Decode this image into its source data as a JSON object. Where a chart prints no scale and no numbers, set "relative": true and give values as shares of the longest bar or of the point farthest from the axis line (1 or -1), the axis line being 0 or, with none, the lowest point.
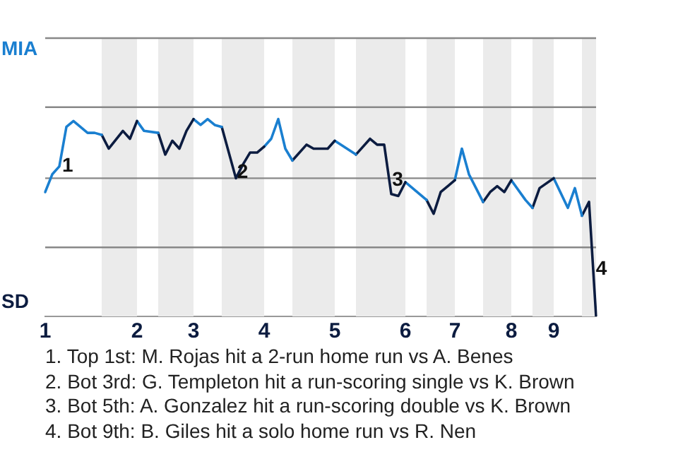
{
  "chart_data": {
    "type": "line",
    "marker": "none",
    "line_style": "solid",
    "relative": true,
    "ref_lines": [
      {
        "axis": "y",
        "value": 0.35,
        "color": "#888888"
      },
      {
        "axis": "y",
        "value": 0.7,
        "color": "#888888"
      },
      {
        "axis": "y",
        "value": 1.06,
        "color": "#888888"
      },
      {
        "axis": "y",
        "value": 1.41,
        "color": "#888888"
      }
    ],
    "categories": [
      "1",
      null,
      null,
      null,
      null,
      null,
      null,
      null,
      null,
      null,
      null,
      null,
      null,
      "2",
      null,
      null,
      null,
      null,
      null,
      null,
      null,
      "3",
      null,
      null,
      null,
      null,
      null,
      null,
      null,
      null,
      null,
      "4",
      null,
      null,
      null,
      null,
      null,
      null,
      null,
      null,
      null,
      "5",
      null,
      null,
      null,
      null,
      null,
      null,
      null,
      null,
      null,
      "6",
      null,
      null,
      null,
      null,
      null,
      null,
      "7",
      null,
      null,
      null,
      null,
      null,
      null,
      null,
      "8",
      null,
      null,
      null,
      null,
      null,
      "9",
      null,
      null,
      null,
      null,
      null,
      null
    ],
    "series": [
      {
        "color": "#1a7fd0",
        "values": [
          0.63,
          0.72,
          0.76,
          0.96,
          0.99,
          null,
          0.93,
          0.93,
          0.92,
          null,
          null,
          null,
          null,
          null,
          null,
          null,
          null,
          null,
          null,
          null,
          null,
          null,
          null,
          null,
          null,
          null,
          null,
          null,
          null,
          null,
          null,
          null,
          null,
          null,
          null,
          null,
          null,
          null,
          null,
          null,
          null,
          null,
          null,
          null,
          null,
          null,
          null,
          null,
          null,
          null,
          null,
          null,
          null,
          null,
          null,
          null,
          null,
          null,
          null,
          null,
          null,
          null,
          null,
          null,
          null,
          null,
          null,
          null,
          null,
          null,
          null,
          null,
          null,
          null,
          null,
          null,
          null,
          null,
          null
        ]
      },
      {
        "color": "#0c1c40",
        "values": [
          null,
          null,
          null,
          null,
          null,
          null,
          null,
          null,
          0.92,
          0.85,
          null,
          0.94,
          0.9,
          0.99,
          null,
          null,
          null,
          null,
          null,
          null,
          null,
          null,
          null,
          null,
          null,
          null,
          null,
          null,
          null,
          null,
          null,
          null,
          null,
          null,
          null,
          null,
          null,
          null,
          null,
          null,
          null,
          null,
          null,
          null,
          null,
          null,
          null,
          null,
          null,
          null,
          null,
          null,
          null,
          null,
          null,
          null,
          null,
          null,
          null,
          null,
          null,
          null,
          null,
          null,
          null,
          null,
          null,
          null,
          null,
          null,
          null,
          null,
          null,
          null,
          null,
          null,
          null,
          null,
          null
        ]
      },
      {
        "color": "#1a7fd0",
        "values": [
          null,
          null,
          null,
          null,
          null,
          null,
          null,
          null,
          null,
          null,
          null,
          null,
          null,
          0.99,
          0.94,
          null,
          0.93,
          null,
          null,
          null,
          null,
          null,
          null,
          null,
          null,
          null,
          null,
          null,
          null,
          null,
          null,
          null,
          null,
          null,
          null,
          null,
          null,
          null,
          null,
          null,
          null,
          null,
          null,
          null,
          null,
          null,
          null,
          null,
          null,
          null,
          null,
          null,
          null,
          null,
          null,
          null,
          null,
          null,
          null,
          null,
          null,
          null,
          null,
          null,
          null,
          null,
          null,
          null,
          null,
          null,
          null,
          null,
          null,
          null,
          null,
          null,
          null,
          null,
          null
        ]
      },
      {
        "color": "#0c1c40",
        "values": [
          null,
          null,
          null,
          null,
          null,
          null,
          null,
          null,
          null,
          null,
          null,
          null,
          null,
          null,
          null,
          null,
          0.93,
          0.82,
          0.89,
          0.85,
          0.94,
          1,
          null,
          null,
          null,
          null,
          null,
          null,
          null,
          null,
          null,
          null,
          null,
          null,
          null,
          null,
          null,
          null,
          null,
          null,
          null,
          null,
          null,
          null,
          null,
          null,
          null,
          null,
          null,
          null,
          null,
          null,
          null,
          null,
          null,
          null,
          null,
          null,
          null,
          null,
          null,
          null,
          null,
          null,
          null,
          null,
          null,
          null,
          null,
          null,
          null,
          null,
          null,
          null,
          null,
          null,
          null,
          null,
          null
        ]
      },
      {
        "color": "#1a7fd0",
        "values": [
          null,
          null,
          null,
          null,
          null,
          null,
          null,
          null,
          null,
          null,
          null,
          null,
          null,
          null,
          null,
          null,
          null,
          null,
          null,
          null,
          null,
          1,
          0.97,
          1,
          0.97,
          0.96,
          null,
          null,
          null,
          null,
          null,
          null,
          null,
          null,
          null,
          null,
          null,
          null,
          null,
          null,
          null,
          null,
          null,
          null,
          null,
          null,
          null,
          null,
          null,
          null,
          null,
          null,
          null,
          null,
          null,
          null,
          null,
          null,
          null,
          null,
          null,
          null,
          null,
          null,
          null,
          null,
          null,
          null,
          null,
          null,
          null,
          null,
          null,
          null,
          null,
          null,
          null,
          null,
          null
        ]
      },
      {
        "color": "#0c1c40",
        "values": [
          null,
          null,
          null,
          null,
          null,
          null,
          null,
          null,
          null,
          null,
          null,
          null,
          null,
          null,
          null,
          null,
          null,
          null,
          null,
          null,
          null,
          null,
          null,
          null,
          null,
          0.96,
          null,
          0.7,
          0.77,
          0.83,
          0.83,
          0.86,
          null,
          null,
          null,
          null,
          null,
          null,
          null,
          null,
          null,
          null,
          null,
          null,
          null,
          null,
          null,
          null,
          null,
          null,
          null,
          null,
          null,
          null,
          null,
          null,
          null,
          null,
          null,
          null,
          null,
          null,
          null,
          null,
          null,
          null,
          null,
          null,
          null,
          null,
          null,
          null,
          null,
          null,
          null,
          null,
          null,
          null,
          null
        ]
      },
      {
        "color": "#1a7fd0",
        "values": [
          null,
          null,
          null,
          null,
          null,
          null,
          null,
          null,
          null,
          null,
          null,
          null,
          null,
          null,
          null,
          null,
          null,
          null,
          null,
          null,
          null,
          null,
          null,
          null,
          null,
          null,
          null,
          null,
          null,
          null,
          null,
          0.86,
          0.9,
          1,
          0.85,
          0.79,
          null,
          null,
          null,
          null,
          null,
          null,
          null,
          null,
          null,
          null,
          null,
          null,
          null,
          null,
          null,
          null,
          null,
          null,
          null,
          null,
          null,
          null,
          null,
          null,
          null,
          null,
          null,
          null,
          null,
          null,
          null,
          null,
          null,
          null,
          null,
          null,
          null,
          null,
          null,
          null,
          null,
          null,
          null
        ]
      },
      {
        "color": "#0c1c40",
        "values": [
          null,
          null,
          null,
          null,
          null,
          null,
          null,
          null,
          null,
          null,
          null,
          null,
          null,
          null,
          null,
          null,
          null,
          null,
          null,
          null,
          null,
          null,
          null,
          null,
          null,
          null,
          null,
          null,
          null,
          null,
          null,
          null,
          null,
          null,
          null,
          0.79,
          null,
          0.87,
          0.85,
          null,
          0.85,
          0.89,
          null,
          null,
          null,
          null,
          null,
          null,
          null,
          null,
          null,
          null,
          null,
          null,
          null,
          null,
          null,
          null,
          null,
          null,
          null,
          null,
          null,
          null,
          null,
          null,
          null,
          null,
          null,
          null,
          null,
          null,
          null,
          null,
          null,
          null,
          null,
          null,
          null
        ]
      },
      {
        "color": "#1a7fd0",
        "values": [
          null,
          null,
          null,
          null,
          null,
          null,
          null,
          null,
          null,
          null,
          null,
          null,
          null,
          null,
          null,
          null,
          null,
          null,
          null,
          null,
          null,
          null,
          null,
          null,
          null,
          null,
          null,
          null,
          null,
          null,
          null,
          null,
          null,
          null,
          null,
          null,
          null,
          null,
          null,
          null,
          null,
          0.89,
          null,
          null,
          0.82,
          null,
          null,
          null,
          null,
          null,
          null,
          null,
          null,
          null,
          null,
          null,
          null,
          null,
          null,
          null,
          null,
          null,
          null,
          null,
          null,
          null,
          null,
          null,
          null,
          null,
          null,
          null,
          null,
          null,
          null,
          null,
          null,
          null,
          null
        ]
      },
      {
        "color": "#0c1c40",
        "values": [
          null,
          null,
          null,
          null,
          null,
          null,
          null,
          null,
          null,
          null,
          null,
          null,
          null,
          null,
          null,
          null,
          null,
          null,
          null,
          null,
          null,
          null,
          null,
          null,
          null,
          null,
          null,
          null,
          null,
          null,
          null,
          null,
          null,
          null,
          null,
          null,
          null,
          null,
          null,
          null,
          null,
          null,
          null,
          null,
          0.82,
          null,
          0.9,
          0.87,
          0.87,
          0.62,
          0.61,
          0.68,
          null,
          null,
          null,
          null,
          null,
          null,
          null,
          null,
          null,
          null,
          null,
          null,
          null,
          null,
          null,
          null,
          null,
          null,
          null,
          null,
          null,
          null,
          null,
          null,
          null,
          null,
          null
        ]
      },
      {
        "color": "#1a7fd0",
        "values": [
          null,
          null,
          null,
          null,
          null,
          null,
          null,
          null,
          null,
          null,
          null,
          null,
          null,
          null,
          null,
          null,
          null,
          null,
          null,
          null,
          null,
          null,
          null,
          null,
          null,
          null,
          null,
          null,
          null,
          null,
          null,
          null,
          null,
          null,
          null,
          null,
          null,
          null,
          null,
          null,
          null,
          null,
          null,
          null,
          null,
          null,
          null,
          null,
          null,
          null,
          null,
          0.68,
          null,
          null,
          0.59,
          null,
          null,
          null,
          null,
          null,
          null,
          null,
          null,
          null,
          null,
          null,
          null,
          null,
          null,
          null,
          null,
          null,
          null,
          null,
          null,
          null,
          null,
          null,
          null
        ]
      },
      {
        "color": "#0c1c40",
        "values": [
          null,
          null,
          null,
          null,
          null,
          null,
          null,
          null,
          null,
          null,
          null,
          null,
          null,
          null,
          null,
          null,
          null,
          null,
          null,
          null,
          null,
          null,
          null,
          null,
          null,
          null,
          null,
          null,
          null,
          null,
          null,
          null,
          null,
          null,
          null,
          null,
          null,
          null,
          null,
          null,
          null,
          null,
          null,
          null,
          null,
          null,
          null,
          null,
          null,
          null,
          null,
          null,
          null,
          null,
          0.59,
          0.52,
          0.63,
          0.66,
          0.69,
          null,
          null,
          null,
          null,
          null,
          null,
          null,
          null,
          null,
          null,
          null,
          null,
          null,
          null,
          null,
          null,
          null,
          null,
          null,
          null
        ]
      },
      {
        "color": "#1a7fd0",
        "values": [
          null,
          null,
          null,
          null,
          null,
          null,
          null,
          null,
          null,
          null,
          null,
          null,
          null,
          null,
          null,
          null,
          null,
          null,
          null,
          null,
          null,
          null,
          null,
          null,
          null,
          null,
          null,
          null,
          null,
          null,
          null,
          null,
          null,
          null,
          null,
          null,
          null,
          null,
          null,
          null,
          null,
          null,
          null,
          null,
          null,
          null,
          null,
          null,
          null,
          null,
          null,
          null,
          null,
          null,
          null,
          null,
          null,
          null,
          0.69,
          0.85,
          0.72,
          null,
          0.58,
          null,
          null,
          null,
          null,
          null,
          null,
          null,
          null,
          null,
          null,
          null,
          null,
          null,
          null,
          null,
          null
        ]
      },
      {
        "color": "#0c1c40",
        "values": [
          null,
          null,
          null,
          null,
          null,
          null,
          null,
          null,
          null,
          null,
          null,
          null,
          null,
          null,
          null,
          null,
          null,
          null,
          null,
          null,
          null,
          null,
          null,
          null,
          null,
          null,
          null,
          null,
          null,
          null,
          null,
          null,
          null,
          null,
          null,
          null,
          null,
          null,
          null,
          null,
          null,
          null,
          null,
          null,
          null,
          null,
          null,
          null,
          null,
          null,
          null,
          null,
          null,
          null,
          null,
          null,
          null,
          null,
          null,
          null,
          null,
          null,
          0.58,
          0.63,
          0.66,
          0.63,
          0.69,
          null,
          null,
          null,
          null,
          null,
          null,
          null,
          null,
          null,
          null,
          null,
          null
        ]
      },
      {
        "color": "#1a7fd0",
        "values": [
          null,
          null,
          null,
          null,
          null,
          null,
          null,
          null,
          null,
          null,
          null,
          null,
          null,
          null,
          null,
          null,
          null,
          null,
          null,
          null,
          null,
          null,
          null,
          null,
          null,
          null,
          null,
          null,
          null,
          null,
          null,
          null,
          null,
          null,
          null,
          null,
          null,
          null,
          null,
          null,
          null,
          null,
          null,
          null,
          null,
          null,
          null,
          null,
          null,
          null,
          null,
          null,
          null,
          null,
          null,
          null,
          null,
          null,
          null,
          null,
          null,
          null,
          null,
          null,
          null,
          null,
          0.69,
          null,
          0.59,
          0.55,
          null,
          null,
          null,
          null,
          null,
          null,
          null,
          null,
          null
        ]
      },
      {
        "color": "#0c1c40",
        "values": [
          null,
          null,
          null,
          null,
          null,
          null,
          null,
          null,
          null,
          null,
          null,
          null,
          null,
          null,
          null,
          null,
          null,
          null,
          null,
          null,
          null,
          null,
          null,
          null,
          null,
          null,
          null,
          null,
          null,
          null,
          null,
          null,
          null,
          null,
          null,
          null,
          null,
          null,
          null,
          null,
          null,
          null,
          null,
          null,
          null,
          null,
          null,
          null,
          null,
          null,
          null,
          null,
          null,
          null,
          null,
          null,
          null,
          null,
          null,
          null,
          null,
          null,
          null,
          null,
          null,
          null,
          null,
          null,
          null,
          0.55,
          0.65,
          null,
          0.7,
          null,
          null,
          null,
          null,
          null,
          null
        ]
      },
      {
        "color": "#1a7fd0",
        "values": [
          null,
          null,
          null,
          null,
          null,
          null,
          null,
          null,
          null,
          null,
          null,
          null,
          null,
          null,
          null,
          null,
          null,
          null,
          null,
          null,
          null,
          null,
          null,
          null,
          null,
          null,
          null,
          null,
          null,
          null,
          null,
          null,
          null,
          null,
          null,
          null,
          null,
          null,
          null,
          null,
          null,
          null,
          null,
          null,
          null,
          null,
          null,
          null,
          null,
          null,
          null,
          null,
          null,
          null,
          null,
          null,
          null,
          null,
          null,
          null,
          null,
          null,
          null,
          null,
          null,
          null,
          null,
          null,
          null,
          null,
          null,
          null,
          0.7,
          null,
          0.55,
          0.65,
          0.51,
          null,
          null
        ]
      },
      {
        "color": "#0c1c40",
        "values": [
          null,
          null,
          null,
          null,
          null,
          null,
          null,
          null,
          null,
          null,
          null,
          null,
          null,
          null,
          null,
          null,
          null,
          null,
          null,
          null,
          null,
          null,
          null,
          null,
          null,
          null,
          null,
          null,
          null,
          null,
          null,
          null,
          null,
          null,
          null,
          null,
          null,
          null,
          null,
          null,
          null,
          null,
          null,
          null,
          null,
          null,
          null,
          null,
          null,
          null,
          null,
          null,
          null,
          null,
          null,
          null,
          null,
          null,
          null,
          null,
          null,
          null,
          null,
          null,
          null,
          null,
          null,
          null,
          null,
          null,
          null,
          null,
          null,
          null,
          null,
          null,
          0.51,
          0.58,
          0
        ]
      }
    ],
    "annotations": [
      "MIA",
      "SD",
      {
        "text": "1",
        "y": 0.76
      },
      {
        "text": "2",
        "y": 0.73
      },
      {
        "text": "3",
        "y": 0.69
      },
      {
        "text": "4",
        "y": 0.24
      },
      "1. Top 1st: M. Rojas hit a 2-run home run vs A. Benes",
      "2. Bot 3rd: G. Templeton hit a run-scoring single vs K. Brown",
      "3. Bot 5th: A. Gonzalez hit a run-scoring double vs K. Brown",
      "4. Bot 9th: B. Giles hit a solo home run vs R. Nen"
    ]
  }
}
